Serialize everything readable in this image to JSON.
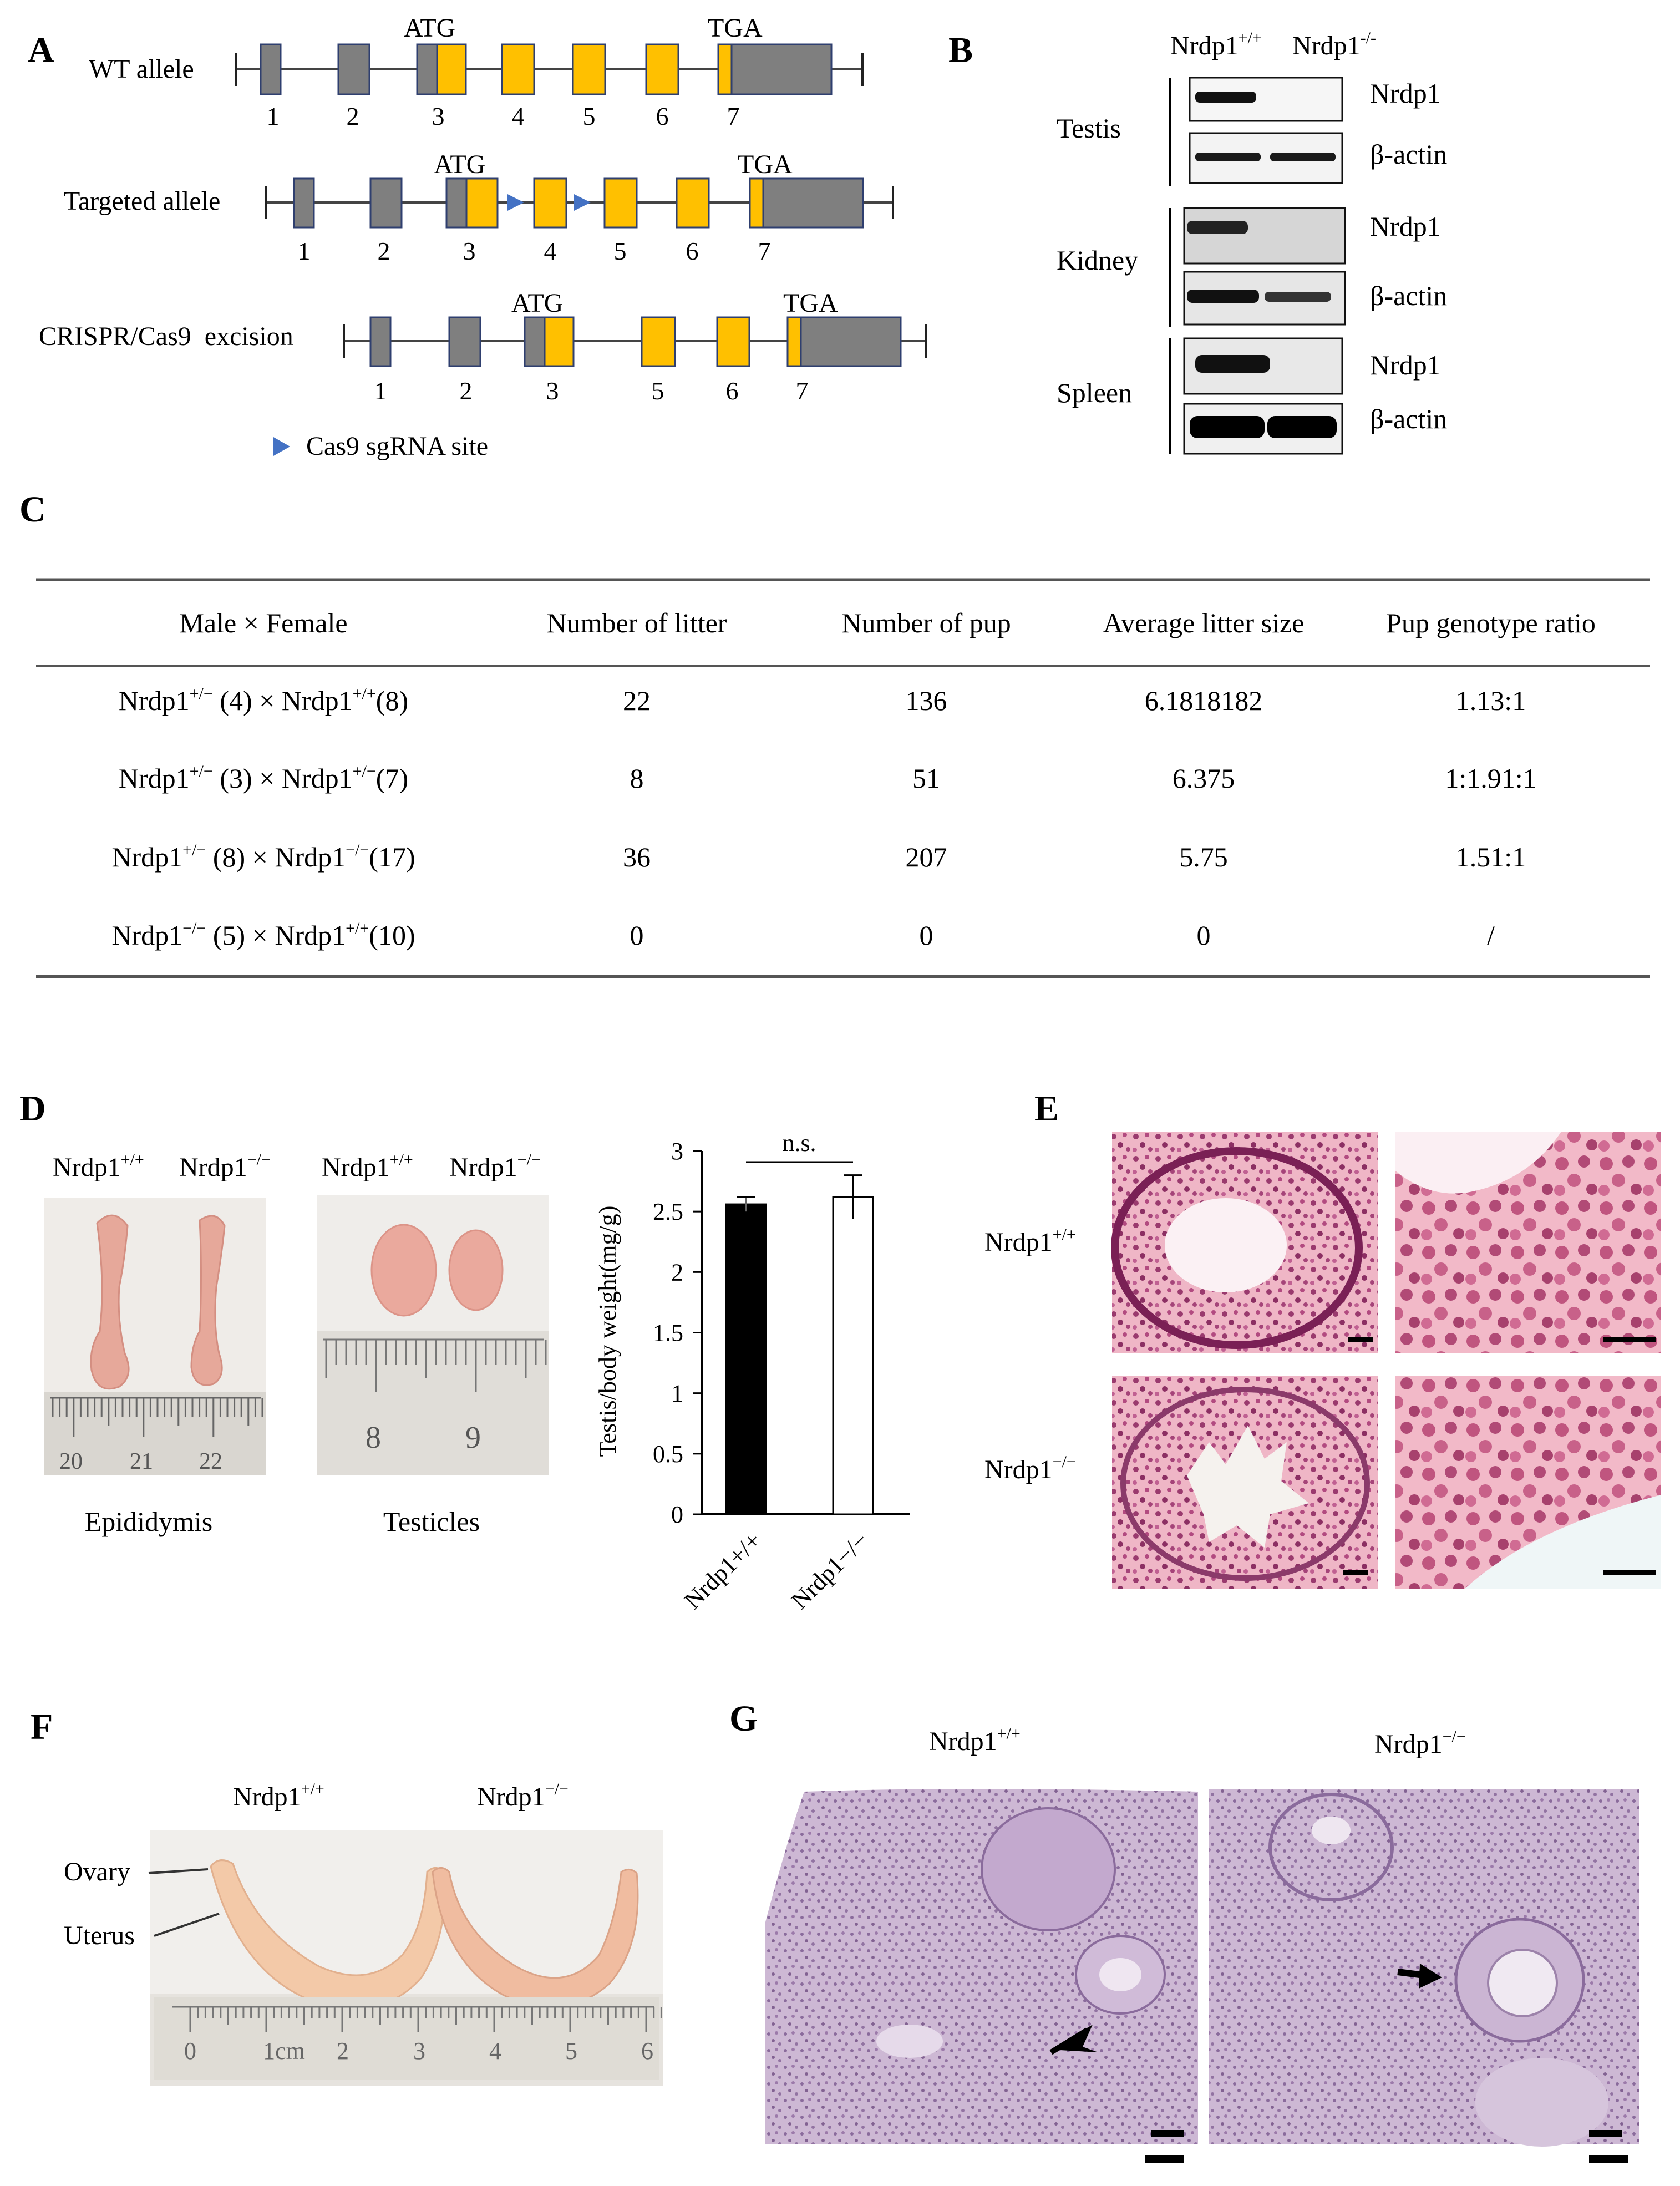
{
  "panels": {
    "A": "A",
    "B": "B",
    "C": "C",
    "D": "D",
    "E": "E",
    "F": "F",
    "G": "G"
  },
  "panel_a": {
    "rows": [
      {
        "label": "WT allele",
        "atg": "ATG",
        "tga": "TGA",
        "exons": [
          "1",
          "2",
          "3",
          "4",
          "5",
          "6",
          "7"
        ]
      },
      {
        "label": "Targeted allele",
        "atg": "ATG",
        "tga": "TGA",
        "exons": [
          "1",
          "2",
          "3",
          "4",
          "5",
          "6",
          "7"
        ]
      },
      {
        "label": "CRISPR/Cas9  excision",
        "atg": "ATG",
        "tga": "TGA",
        "exons": [
          "1",
          "2",
          "3",
          "5",
          "6",
          "7"
        ]
      }
    ],
    "legend": "Cas9 sgRNA site",
    "colors": {
      "intron": "#595959",
      "exon_noncoding": "#7f7f7f",
      "exon_coding": "#ffc000",
      "sgRNA": "#4472c4"
    }
  },
  "panel_b": {
    "col_wt_base": "Nrdp1",
    "col_wt_sup": "+/+",
    "col_ko_base": "Nrdp1",
    "col_ko_sup": "-/-",
    "tissues": [
      "Testis",
      "Kidney",
      "Spleen"
    ],
    "proteins": [
      "Nrdp1",
      "β-actin"
    ]
  },
  "panel_c": {
    "headers": [
      "Male × Female",
      "Number of litter",
      "Number of pup",
      "Average litter size",
      "Pup genotype ratio"
    ],
    "rows": [
      {
        "male_base": "Nrdp1",
        "male_sup": "+/−",
        "male_n": "(4)",
        "x": "×",
        "female_base": "Nrdp1",
        "female_sup": "+/+",
        "female_n": "(8)",
        "litters": "22",
        "pups": "136",
        "avg": "6.1818182",
        "ratio": "1.13:1"
      },
      {
        "male_base": "Nrdp1",
        "male_sup": "+/−",
        "male_n": "(3)",
        "x": "×",
        "female_base": "Nrdp1",
        "female_sup": "+/−",
        "female_n": "(7)",
        "litters": "8",
        "pups": "51",
        "avg": "6.375",
        "ratio": "1:1.91:1"
      },
      {
        "male_base": "Nrdp1",
        "male_sup": "+/−",
        "male_n": "(8)",
        "x": "×",
        "female_base": "Nrdp1",
        "female_sup": "−/−",
        "female_n": "(17)",
        "litters": "36",
        "pups": "207",
        "avg": "5.75",
        "ratio": "1.51:1"
      },
      {
        "male_base": "Nrdp1",
        "male_sup": "−/−",
        "male_n": "(5)",
        "x": "×",
        "female_base": "Nrdp1",
        "female_sup": "+/+",
        "female_n": "(10)",
        "litters": "0",
        "pups": "0",
        "avg": "0",
        "ratio": "/"
      }
    ]
  },
  "panel_d": {
    "genotype_wt_base": "Nrdp1",
    "genotype_wt_sup": "+/+",
    "genotype_ko_base": "Nrdp1",
    "genotype_ko_sup": "−/−",
    "epididymis_label": "Epididymis",
    "testicles_label": "Testicles",
    "ruler_epididymis": [
      "20",
      "21",
      "22"
    ],
    "ruler_testicles": [
      "8",
      "9"
    ],
    "significance": "n.s."
  },
  "chart_data": {
    "type": "bar",
    "categories": [
      "Nrdp1+/+",
      "Nrdp1−/−"
    ],
    "values": [
      2.56,
      2.62
    ],
    "errors": [
      0.06,
      0.18
    ],
    "bar_colors": [
      "#000000",
      "#ffffff"
    ],
    "ylabel": "Testis/body weight(mg/g)",
    "ylim": [
      0,
      3
    ],
    "yticks": [
      "0",
      "0.5",
      "1",
      "1.5",
      "2",
      "2.5",
      "3"
    ],
    "grid": false
  },
  "panel_e": {
    "row_wt_base": "Nrdp1",
    "row_wt_sup": "+/+",
    "row_ko_base": "Nrdp1",
    "row_ko_sup": "−/−"
  },
  "panel_f": {
    "genotype_wt_base": "Nrdp1",
    "genotype_wt_sup": "+/+",
    "genotype_ko_base": "Nrdp1",
    "genotype_ko_sup": "−/−",
    "label_ovary": "Ovary",
    "label_uterus": "Uterus",
    "ruler": [
      "0",
      "1cm",
      "2",
      "3",
      "4",
      "5",
      "6"
    ]
  },
  "panel_g": {
    "genotype_wt_base": "Nrdp1",
    "genotype_wt_sup": "+/+",
    "genotype_ko_base": "Nrdp1",
    "genotype_ko_sup": "−/−"
  }
}
